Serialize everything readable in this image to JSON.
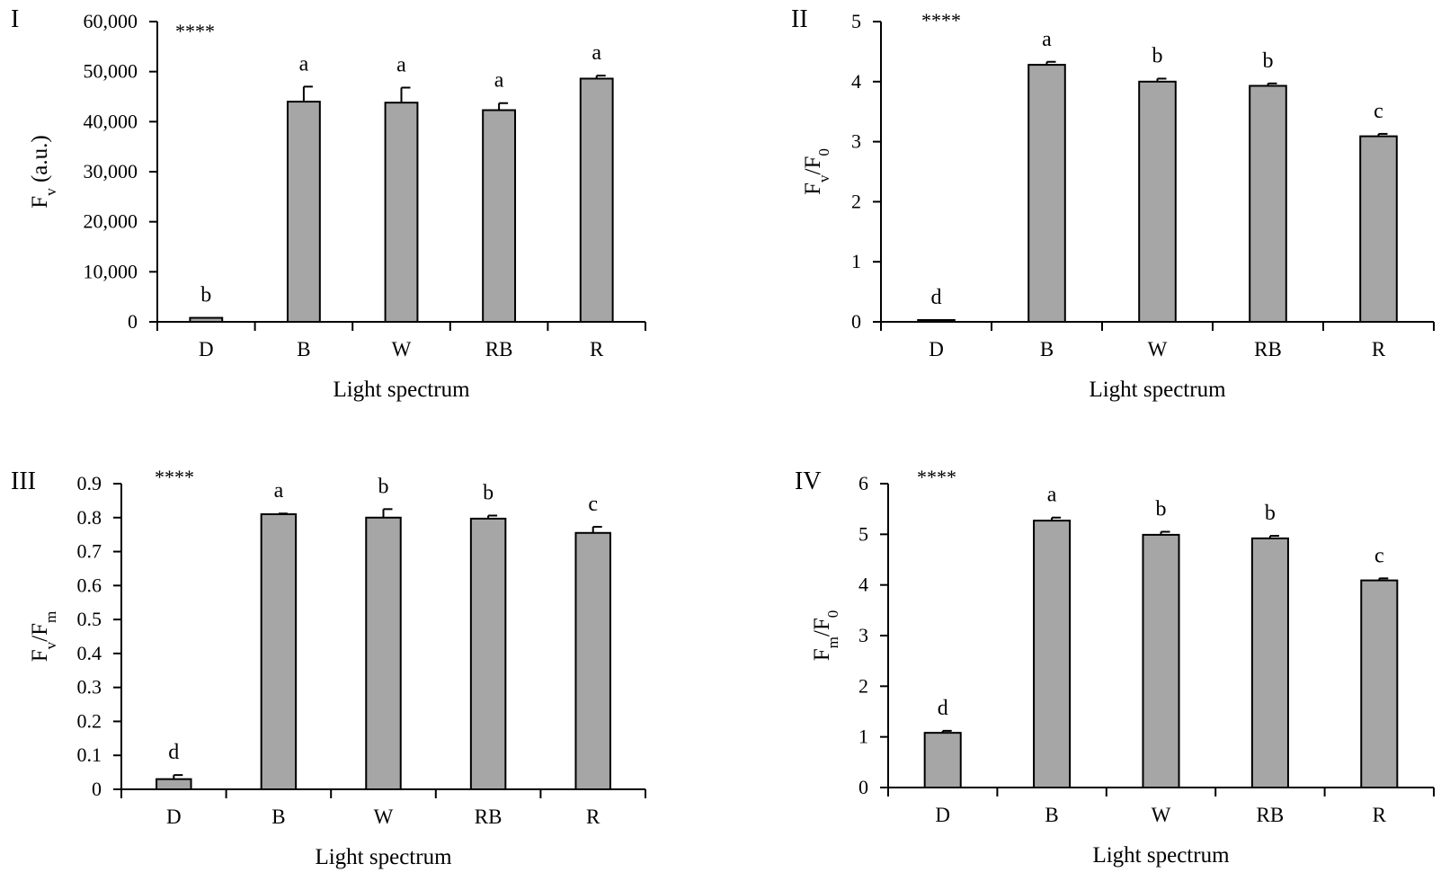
{
  "chart_data": [
    {
      "type": "bar",
      "panel": "I",
      "significance": "****",
      "categories": [
        "D",
        "B",
        "W",
        "RB",
        "R"
      ],
      "values": [
        800,
        44000,
        43800,
        42300,
        48600
      ],
      "errors": [
        0,
        3000,
        3000,
        1400,
        600
      ],
      "letters": [
        "b",
        "a",
        "a",
        "a",
        "a"
      ],
      "yticks": [
        "0",
        "10,000",
        "20,000",
        "30,000",
        "40,000",
        "50,000",
        "60,000"
      ],
      "ylim": [
        0,
        60000
      ],
      "xlabel": "Light spectrum",
      "ylabel_main": "F",
      "ylabel_sub": "v",
      "ylabel_rest": " (a.u.)",
      "ylabel_denom_main": "",
      "ylabel_denom_sub": "",
      "bar_color": "#a6a6a6"
    },
    {
      "type": "bar",
      "panel": "II",
      "significance": "****",
      "categories": [
        "D",
        "B",
        "W",
        "RB",
        "R"
      ],
      "values": [
        0.03,
        4.28,
        4.0,
        3.93,
        3.09
      ],
      "errors": [
        0,
        0.05,
        0.05,
        0.04,
        0.04
      ],
      "letters": [
        "d",
        "a",
        "b",
        "b",
        "c"
      ],
      "yticks": [
        "0",
        "1",
        "2",
        "3",
        "4",
        "5"
      ],
      "ylim": [
        0,
        5
      ],
      "xlabel": "Light spectrum",
      "ylabel_main": "F",
      "ylabel_sub": "v",
      "ylabel_rest": "/",
      "ylabel_denom_main": "F",
      "ylabel_denom_sub": "0",
      "bar_color": "#a6a6a6"
    },
    {
      "type": "bar",
      "panel": "III",
      "significance": "****",
      "categories": [
        "D",
        "B",
        "W",
        "RB",
        "R"
      ],
      "values": [
        0.03,
        0.81,
        0.8,
        0.797,
        0.755
      ],
      "errors": [
        0.012,
        0.002,
        0.025,
        0.009,
        0.018
      ],
      "letters": [
        "d",
        "a",
        "b",
        "b",
        "c"
      ],
      "yticks": [
        "0",
        "0.1",
        "0.2",
        "0.3",
        "0.4",
        "0.5",
        "0.6",
        "0.7",
        "0.8",
        "0.9"
      ],
      "ylim": [
        0,
        0.9
      ],
      "xlabel": "Light spectrum",
      "ylabel_main": "F",
      "ylabel_sub": "v",
      "ylabel_rest": "/",
      "ylabel_denom_main": "F",
      "ylabel_denom_sub": "m",
      "bar_color": "#a6a6a6"
    },
    {
      "type": "bar",
      "panel": "IV",
      "significance": "****",
      "categories": [
        "D",
        "B",
        "W",
        "RB",
        "R"
      ],
      "values": [
        1.08,
        5.27,
        4.99,
        4.92,
        4.09
      ],
      "errors": [
        0.04,
        0.06,
        0.06,
        0.05,
        0.04
      ],
      "letters": [
        "d",
        "a",
        "b",
        "b",
        "c"
      ],
      "yticks": [
        "0",
        "1",
        "2",
        "3",
        "4",
        "5",
        "6"
      ],
      "ylim": [
        0,
        6
      ],
      "xlabel": "Light spectrum",
      "ylabel_main": "F",
      "ylabel_sub": "m",
      "ylabel_rest": "/",
      "ylabel_denom_main": "F",
      "ylabel_denom_sub": "0",
      "bar_color": "#a6a6a6"
    }
  ]
}
